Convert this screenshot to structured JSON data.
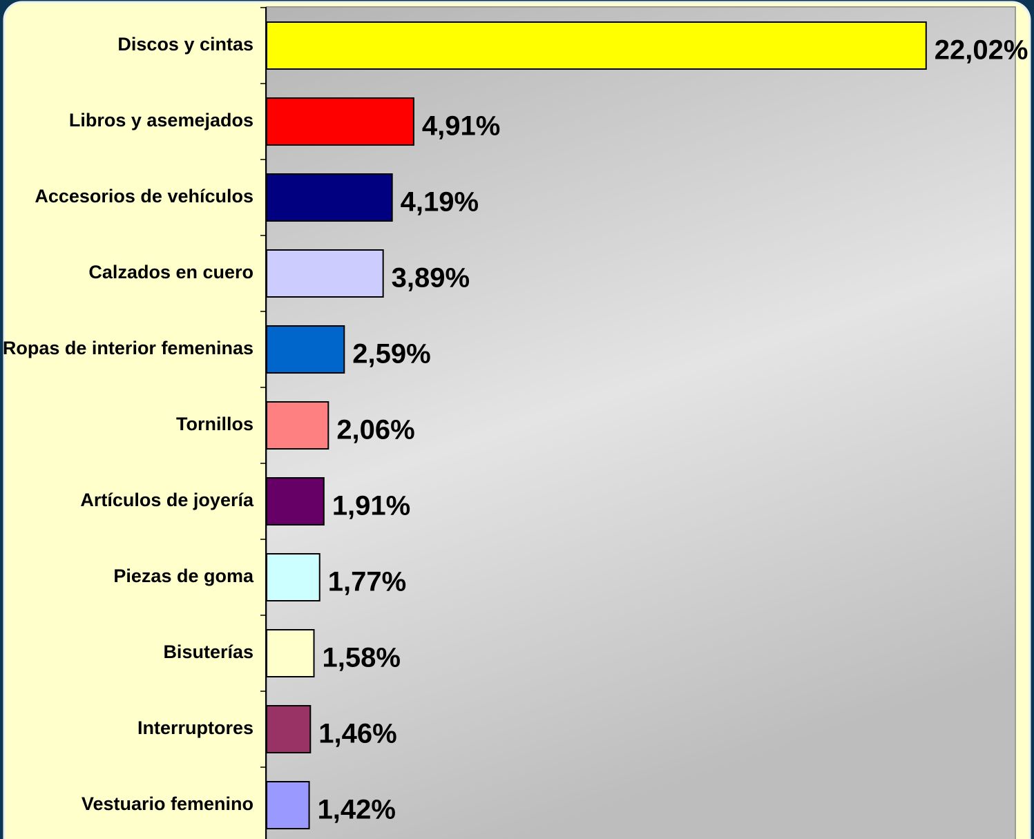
{
  "chart_data": {
    "type": "bar",
    "orientation": "horizontal",
    "categories": [
      "Discos y cintas",
      "Libros y asemejados",
      "Accesorios de vehículos",
      "Calzados en cuero",
      "Ropas de interior femeninas",
      "Tornillos",
      "Artículos de joyería",
      "Piezas de goma",
      "Bisuterías",
      "Interruptores",
      "Vestuario femenino"
    ],
    "values": [
      22.02,
      4.91,
      4.19,
      3.89,
      2.59,
      2.06,
      1.91,
      1.77,
      1.58,
      1.46,
      1.42
    ],
    "value_labels": [
      "22,02%",
      "4,91%",
      "4,19%",
      "3,89%",
      "2,59%",
      "2,06%",
      "1,91%",
      "1,77%",
      "1,58%",
      "1,46%",
      "1,42%"
    ],
    "colors": [
      "#ffff00",
      "#ff0000",
      "#000080",
      "#ccccff",
      "#0066cc",
      "#ff8080",
      "#660066",
      "#ccffff",
      "#ffffcc",
      "#993366",
      "#9999ff"
    ],
    "xlim": [
      0,
      25
    ]
  }
}
